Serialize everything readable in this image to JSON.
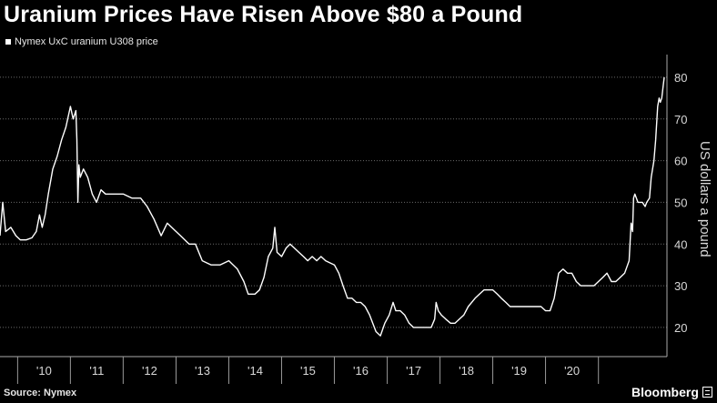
{
  "chart_data": {
    "type": "line",
    "title": "Uranium Prices Have Risen Above $80 a Pound",
    "series": [
      {
        "name": "Nymex UxC uranium U308 price",
        "color": "#ffffff",
        "points": [
          [
            "2009-09-01",
            42
          ],
          [
            "2009-09-20",
            50
          ],
          [
            "2009-10-10",
            43
          ],
          [
            "2009-11-15",
            44
          ],
          [
            "2009-12-20",
            42
          ],
          [
            "2010-01-20",
            41
          ],
          [
            "2010-03-01",
            41
          ],
          [
            "2010-04-10",
            41.5
          ],
          [
            "2010-05-10",
            43
          ],
          [
            "2010-06-01",
            47
          ],
          [
            "2010-06-20",
            44
          ],
          [
            "2010-07-10",
            47
          ],
          [
            "2010-08-01",
            52
          ],
          [
            "2010-09-01",
            58
          ],
          [
            "2010-10-01",
            61
          ],
          [
            "2010-11-01",
            65
          ],
          [
            "2010-12-01",
            68
          ],
          [
            "2011-01-01",
            73
          ],
          [
            "2011-01-20",
            70
          ],
          [
            "2011-02-08",
            72
          ],
          [
            "2011-02-15",
            65
          ],
          [
            "2011-02-22",
            50
          ],
          [
            "2011-03-01",
            59
          ],
          [
            "2011-03-10",
            56
          ],
          [
            "2011-04-01",
            58
          ],
          [
            "2011-05-01",
            56
          ],
          [
            "2011-06-01",
            52
          ],
          [
            "2011-07-01",
            50
          ],
          [
            "2011-08-01",
            53
          ],
          [
            "2011-09-01",
            52
          ],
          [
            "2011-11-01",
            52
          ],
          [
            "2012-01-01",
            52
          ],
          [
            "2012-03-01",
            51
          ],
          [
            "2012-05-01",
            51
          ],
          [
            "2012-06-15",
            49
          ],
          [
            "2012-08-01",
            46
          ],
          [
            "2012-09-20",
            42
          ],
          [
            "2012-11-01",
            45
          ],
          [
            "2013-01-01",
            43
          ],
          [
            "2013-02-01",
            42
          ],
          [
            "2013-04-01",
            40
          ],
          [
            "2013-05-15",
            40
          ],
          [
            "2013-07-01",
            36
          ],
          [
            "2013-09-01",
            35
          ],
          [
            "2013-11-01",
            35
          ],
          [
            "2014-01-01",
            36
          ],
          [
            "2014-03-01",
            34
          ],
          [
            "2014-04-15",
            31
          ],
          [
            "2014-05-15",
            28
          ],
          [
            "2014-07-01",
            28
          ],
          [
            "2014-08-01",
            29
          ],
          [
            "2014-09-01",
            32
          ],
          [
            "2014-10-01",
            37
          ],
          [
            "2014-11-01",
            39
          ],
          [
            "2014-11-15",
            44
          ],
          [
            "2014-12-01",
            38
          ],
          [
            "2015-01-01",
            37
          ],
          [
            "2015-02-01",
            39
          ],
          [
            "2015-03-01",
            40
          ],
          [
            "2015-05-01",
            38
          ],
          [
            "2015-06-01",
            37
          ],
          [
            "2015-07-01",
            36
          ],
          [
            "2015-08-01",
            37
          ],
          [
            "2015-09-01",
            36
          ],
          [
            "2015-10-01",
            37
          ],
          [
            "2015-11-01",
            36
          ],
          [
            "2016-01-01",
            35
          ],
          [
            "2016-02-01",
            33
          ],
          [
            "2016-03-01",
            30
          ],
          [
            "2016-04-01",
            27
          ],
          [
            "2016-05-01",
            27
          ],
          [
            "2016-06-01",
            26
          ],
          [
            "2016-07-01",
            26
          ],
          [
            "2016-08-01",
            25
          ],
          [
            "2016-09-01",
            23
          ],
          [
            "2016-10-15",
            19
          ],
          [
            "2016-11-15",
            18
          ],
          [
            "2016-12-15",
            21
          ],
          [
            "2017-01-15",
            23
          ],
          [
            "2017-02-10",
            26
          ],
          [
            "2017-03-01",
            24
          ],
          [
            "2017-04-01",
            24
          ],
          [
            "2017-05-01",
            23
          ],
          [
            "2017-06-01",
            21
          ],
          [
            "2017-07-01",
            20
          ],
          [
            "2017-09-01",
            20
          ],
          [
            "2017-11-01",
            20
          ],
          [
            "2017-11-25",
            22
          ],
          [
            "2017-12-05",
            26
          ],
          [
            "2017-12-20",
            24
          ],
          [
            "2018-01-10",
            23
          ],
          [
            "2018-02-10",
            22
          ],
          [
            "2018-03-15",
            21
          ],
          [
            "2018-04-15",
            21
          ],
          [
            "2018-05-15",
            22
          ],
          [
            "2018-06-15",
            23
          ],
          [
            "2018-07-15",
            25
          ],
          [
            "2018-09-01",
            27
          ],
          [
            "2018-10-01",
            28
          ],
          [
            "2018-11-01",
            29
          ],
          [
            "2018-12-01",
            29
          ],
          [
            "2019-01-01",
            29
          ],
          [
            "2019-02-01",
            28
          ],
          [
            "2019-03-01",
            27
          ],
          [
            "2019-04-01",
            26
          ],
          [
            "2019-05-01",
            25
          ],
          [
            "2019-06-01",
            25
          ],
          [
            "2019-08-01",
            25
          ],
          [
            "2019-10-01",
            25
          ],
          [
            "2019-12-01",
            25
          ],
          [
            "2020-01-01",
            24
          ],
          [
            "2020-02-01",
            24
          ],
          [
            "2020-03-01",
            27
          ],
          [
            "2020-04-01",
            33
          ],
          [
            "2020-05-01",
            34
          ],
          [
            "2020-06-01",
            33
          ],
          [
            "2020-07-01",
            33
          ],
          [
            "2020-08-01",
            31
          ],
          [
            "2020-09-01",
            30
          ],
          [
            "2020-10-01",
            30
          ],
          [
            "2020-12-01",
            30
          ],
          [
            "2021-01-01",
            31
          ],
          [
            "2021-02-01",
            32
          ],
          [
            "2021-03-01",
            33
          ],
          [
            "2021-04-01",
            31
          ],
          [
            "2021-05-01",
            31
          ],
          [
            "2021-06-01",
            32
          ],
          [
            "2021-07-01",
            33
          ],
          [
            "2021-08-01",
            36
          ],
          [
            "2021-08-15",
            45
          ],
          [
            "2021-08-25",
            43
          ],
          [
            "2021-09-01",
            51
          ],
          [
            "2021-09-10",
            52
          ],
          [
            "2021-10-01",
            50
          ],
          [
            "2021-11-01",
            50
          ],
          [
            "2021-11-20",
            49
          ],
          [
            "2021-12-01",
            50
          ],
          [
            "2021-12-20",
            51
          ],
          [
            "2022-01-01",
            56
          ],
          [
            "2022-01-20",
            60
          ],
          [
            "2022-02-01",
            65
          ],
          [
            "2022-02-15",
            73
          ],
          [
            "2022-02-25",
            75
          ],
          [
            "2022-03-05",
            74
          ],
          [
            "2022-03-15",
            75
          ],
          [
            "2022-03-25",
            78
          ],
          [
            "2022-04-01",
            80
          ]
        ]
      }
    ],
    "x_tick_labels": [
      "'10",
      "'11",
      "'12",
      "'13",
      "'14",
      "'15",
      "'16",
      "'17",
      "'18",
      "'19",
      "'20"
    ],
    "xlim": [
      "2009-09-01",
      "2022-04-20"
    ],
    "ylabel": "US dollars a pound",
    "y_ticks": [
      20,
      30,
      40,
      50,
      60,
      70,
      80
    ],
    "ylim": [
      13,
      85
    ],
    "grid": "horizontal dotted",
    "legend": "top-left"
  },
  "source": "Source: Nymex",
  "brand": "Bloomberg",
  "colors": {
    "background": "#000000",
    "line": "#ffffff",
    "grid": "#6a6a6a"
  }
}
